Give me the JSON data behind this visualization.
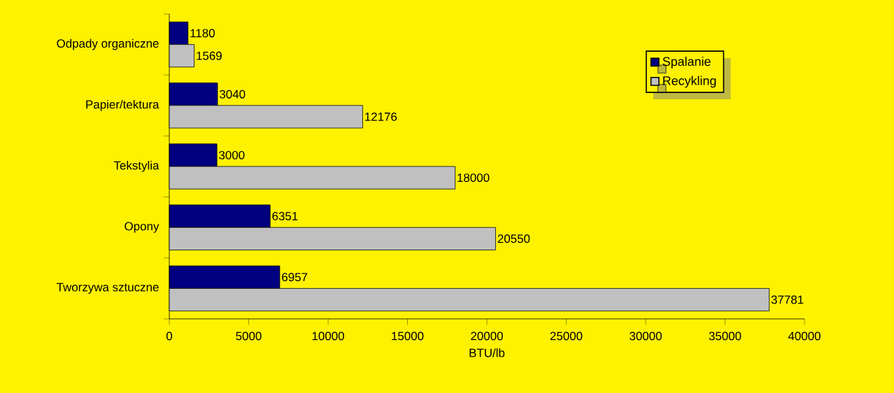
{
  "chart_data": {
    "type": "bar",
    "orientation": "horizontal",
    "xlabel": "BTU/lb",
    "categories": [
      "Odpady organiczne",
      "Papier/tektura",
      "Tekstylia",
      "Opony",
      "Tworzywa sztuczne"
    ],
    "series": [
      {
        "name": "Spalanie",
        "color": "#000080",
        "values": [
          1180,
          3040,
          3000,
          6351,
          6957
        ]
      },
      {
        "name": "Recykling",
        "color": "#c0c0c0",
        "values": [
          1569,
          12176,
          18000,
          20550,
          37781
        ]
      }
    ],
    "xlim": [
      0,
      40000
    ],
    "xticks": [
      0,
      5000,
      10000,
      15000,
      20000,
      25000,
      30000,
      35000,
      40000
    ],
    "data_labels": true,
    "legend": "top right",
    "grid": false
  }
}
